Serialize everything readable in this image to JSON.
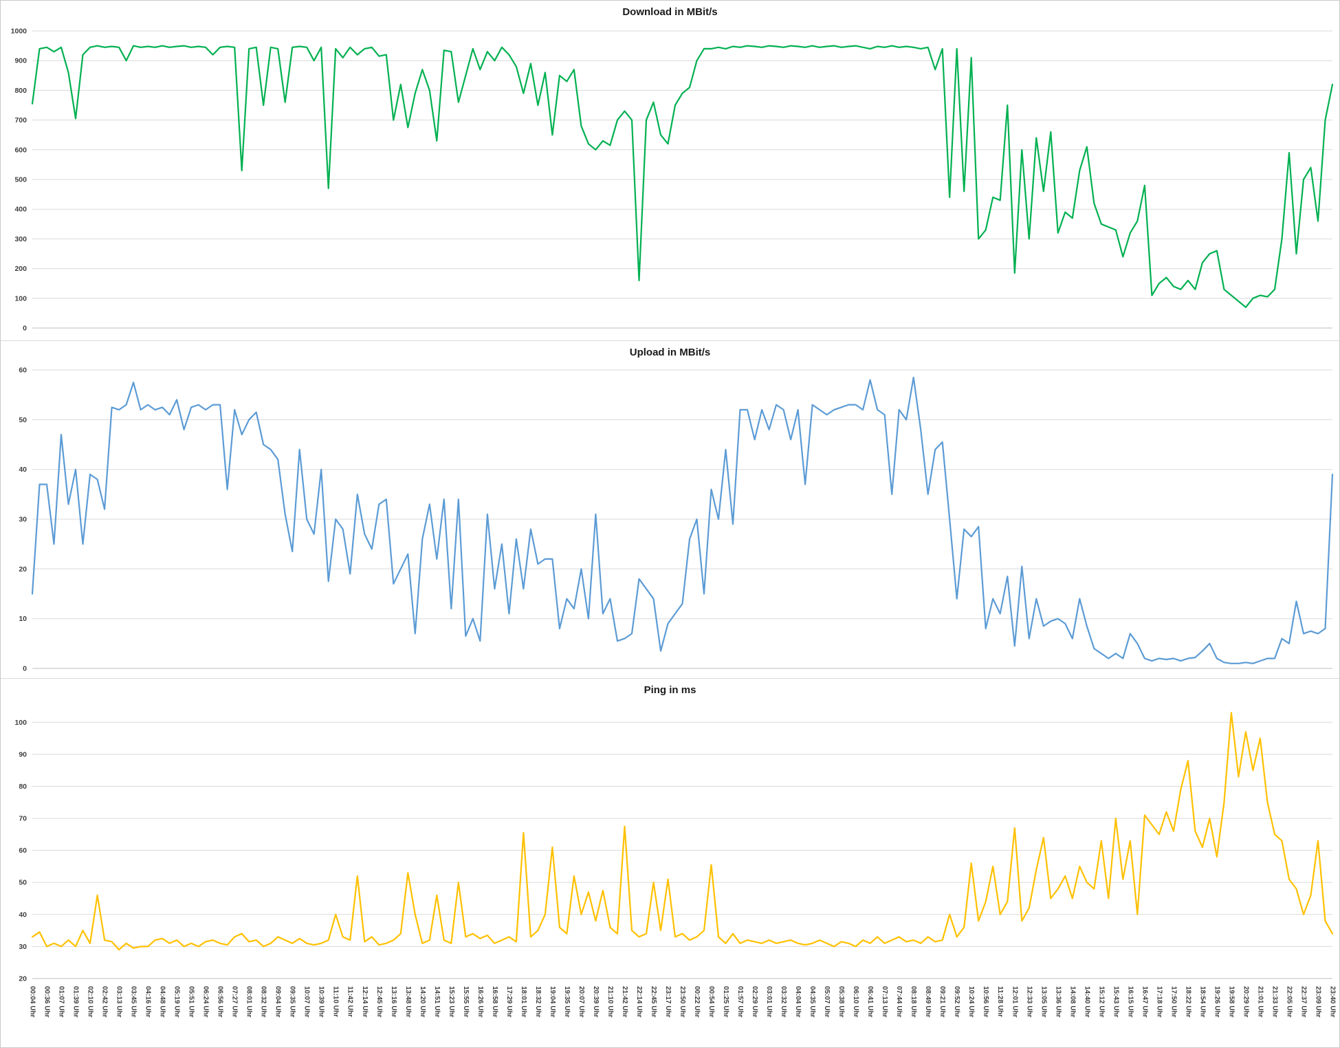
{
  "x_axis": {
    "label_every_n_points": 2,
    "labels": [
      "00:04 Uhr",
      "00:36 Uhr",
      "01:07 Uhr",
      "01:39 Uhr",
      "02:10 Uhr",
      "02:42 Uhr",
      "03:13 Uhr",
      "03:45 Uhr",
      "04:16 Uhr",
      "04:48 Uhr",
      "05:19 Uhr",
      "05:51 Uhr",
      "06:24 Uhr",
      "06:56 Uhr",
      "07:27 Uhr",
      "08:01 Uhr",
      "08:32 Uhr",
      "09:04 Uhr",
      "09:35 Uhr",
      "10:07 Uhr",
      "10:39 Uhr",
      "11:10 Uhr",
      "11:42 Uhr",
      "12:14 Uhr",
      "12:45 Uhr",
      "13:16 Uhr",
      "13:48 Uhr",
      "14:20 Uhr",
      "14:51 Uhr",
      "15:23 Uhr",
      "15:55 Uhr",
      "16:26 Uhr",
      "16:58 Uhr",
      "17:29 Uhr",
      "18:01 Uhr",
      "18:32 Uhr",
      "19:04 Uhr",
      "19:35 Uhr",
      "20:07 Uhr",
      "20:39 Uhr",
      "21:10 Uhr",
      "21:42 Uhr",
      "22:14 Uhr",
      "22:45 Uhr",
      "23:17 Uhr",
      "23:50 Uhr",
      "00:22 Uhr",
      "00:54 Uhr",
      "01:25 Uhr",
      "01:57 Uhr",
      "02:29 Uhr",
      "03:01 Uhr",
      "03:32 Uhr",
      "04:04 Uhr",
      "04:35 Uhr",
      "05:07 Uhr",
      "05:38 Uhr",
      "06:10 Uhr",
      "06:41 Uhr",
      "07:13 Uhr",
      "07:44 Uhr",
      "08:18 Uhr",
      "08:49 Uhr",
      "09:21 Uhr",
      "09:52 Uhr",
      "10:24 Uhr",
      "10:56 Uhr",
      "11:28 Uhr",
      "12:01 Uhr",
      "12:33 Uhr",
      "13:05 Uhr",
      "13:36 Uhr",
      "14:08 Uhr",
      "14:40 Uhr",
      "15:12 Uhr",
      "15:43 Uhr",
      "16:15 Uhr",
      "16:47 Uhr",
      "17:18 Uhr",
      "17:50 Uhr",
      "18:22 Uhr",
      "18:54 Uhr",
      "19:26 Uhr",
      "19:58 Uhr",
      "20:29 Uhr",
      "21:01 Uhr",
      "21:33 Uhr",
      "22:05 Uhr",
      "22:37 Uhr",
      "23:09 Uhr",
      "23:40 Uhr"
    ]
  },
  "chart_data": [
    {
      "type": "line",
      "title": "Download in MBit/s",
      "ylim": [
        0,
        1000
      ],
      "ytick_step": 100,
      "grid": true,
      "legend": "none",
      "show_x_labels": false,
      "series": [
        {
          "name": "Download",
          "color": "#00B050",
          "values": [
            755,
            940,
            945,
            930,
            945,
            860,
            705,
            920,
            945,
            950,
            945,
            948,
            945,
            900,
            950,
            945,
            948,
            945,
            950,
            945,
            948,
            950,
            945,
            948,
            945,
            920,
            945,
            948,
            945,
            530,
            940,
            945,
            750,
            945,
            940,
            760,
            945,
            948,
            945,
            900,
            945,
            470,
            940,
            910,
            945,
            920,
            940,
            945,
            915,
            920,
            700,
            820,
            675,
            790,
            870,
            800,
            630,
            935,
            930,
            760,
            850,
            940,
            870,
            930,
            900,
            945,
            920,
            880,
            790,
            890,
            750,
            860,
            650,
            850,
            830,
            870,
            680,
            620,
            600,
            630,
            615,
            700,
            730,
            700,
            160,
            700,
            760,
            650,
            620,
            750,
            790,
            810,
            900,
            940,
            940,
            945,
            940,
            948,
            945,
            950,
            948,
            945,
            950,
            948,
            945,
            950,
            948,
            945,
            950,
            945,
            948,
            950,
            945,
            948,
            950,
            945,
            940,
            948,
            945,
            950,
            945,
            948,
            945,
            940,
            945,
            870,
            940,
            440,
            940,
            460,
            910,
            300,
            330,
            440,
            430,
            750,
            185,
            600,
            300,
            640,
            460,
            660,
            320,
            390,
            370,
            530,
            610,
            420,
            350,
            340,
            330,
            240,
            320,
            360,
            480,
            110,
            150,
            170,
            140,
            130,
            160,
            130,
            220,
            250,
            260,
            130,
            110,
            90,
            70,
            100,
            110,
            105,
            130,
            300,
            590,
            250,
            500,
            540,
            360,
            700,
            820
          ]
        }
      ]
    },
    {
      "type": "line",
      "title": "Upload in MBit/s",
      "ylim": [
        0,
        60
      ],
      "ytick_step": 10,
      "grid": true,
      "legend": "none",
      "show_x_labels": false,
      "series": [
        {
          "name": "Upload",
          "color": "#5B9BD5",
          "values": [
            15,
            37,
            37,
            25,
            47,
            33,
            40,
            25,
            39,
            38,
            32,
            52.5,
            52,
            53,
            57.5,
            52,
            53,
            52,
            52.5,
            51,
            54,
            48,
            52.5,
            53,
            52,
            53,
            53,
            36,
            52,
            47,
            50,
            51.5,
            45,
            44,
            42,
            31,
            23.5,
            44,
            30,
            27,
            40,
            17.5,
            30,
            28,
            19,
            35,
            27,
            24,
            33,
            34,
            17,
            20,
            23,
            7,
            26,
            33,
            22,
            34,
            12,
            34,
            6.5,
            10,
            5.5,
            31,
            16,
            25,
            11,
            26,
            16,
            28,
            21,
            22,
            22,
            8,
            14,
            12,
            20,
            10,
            31,
            11,
            14,
            5.5,
            6,
            7,
            18,
            16,
            14,
            3.5,
            9,
            11,
            13,
            26,
            30,
            15,
            36,
            30,
            44,
            29,
            52,
            52,
            46,
            52,
            48,
            53,
            52,
            46,
            52,
            37,
            53,
            52,
            51,
            52,
            52.5,
            53,
            53,
            52,
            58,
            52,
            51,
            35,
            52,
            50,
            58.5,
            48,
            35,
            44,
            45.5,
            30,
            14,
            28,
            26.5,
            28.5,
            8,
            14,
            11,
            18.5,
            4.5,
            20.5,
            6,
            14,
            8.5,
            9.5,
            10,
            9,
            6,
            14,
            8.5,
            4,
            3,
            2,
            3,
            2,
            7,
            5,
            2,
            1.5,
            2,
            1.8,
            2,
            1.5,
            2,
            2.2,
            3.5,
            5,
            2,
            1.2,
            1,
            1,
            1.2,
            1,
            1.5,
            2,
            2,
            6,
            5,
            13.5,
            7,
            7.5,
            7,
            8,
            39
          ]
        }
      ]
    },
    {
      "type": "line",
      "title": "Ping in ms",
      "ylim": [
        20,
        105
      ],
      "ytick_max": 100,
      "ytick_step": 10,
      "grid": true,
      "legend": "none",
      "show_x_labels": true,
      "series": [
        {
          "name": "Ping",
          "color": "#FFC000",
          "values": [
            33,
            34.5,
            30,
            31,
            30,
            32,
            30,
            35,
            31,
            46,
            32,
            31.5,
            29,
            31,
            29.5,
            30,
            30,
            32,
            32.5,
            31,
            32,
            30,
            31,
            30,
            31.5,
            32,
            31,
            30.5,
            33,
            34,
            31.5,
            32,
            30,
            31,
            33,
            32,
            31,
            32.5,
            31,
            30.5,
            31,
            32,
            40,
            33,
            32,
            52,
            31.5,
            33,
            30.5,
            31,
            32,
            34,
            53,
            40,
            31,
            32,
            46,
            32,
            31,
            50,
            33,
            34,
            32.5,
            33.5,
            31,
            32,
            33,
            31.5,
            65.5,
            33,
            35,
            40,
            61,
            36,
            34,
            52,
            40,
            47,
            38,
            47.5,
            36,
            34,
            67.5,
            35,
            33,
            34,
            50,
            35,
            51,
            33,
            34,
            32,
            33,
            35,
            55.5,
            33,
            31,
            34,
            31,
            32,
            31.5,
            31,
            32,
            31,
            31.5,
            32,
            31,
            30.5,
            31,
            32,
            31,
            30,
            31.5,
            31,
            30,
            32,
            31,
            33,
            31,
            32,
            33,
            31.5,
            32,
            31,
            33,
            31.5,
            32,
            40,
            33,
            36,
            56,
            38,
            44,
            55,
            40,
            44,
            67,
            38,
            42,
            54,
            64,
            45,
            48,
            52,
            45,
            55,
            50,
            48,
            63,
            45,
            70,
            51,
            63,
            40,
            71,
            68,
            65,
            72,
            66,
            79,
            88,
            66,
            61,
            70,
            58,
            75,
            103,
            83,
            97,
            85,
            95,
            75,
            65,
            63,
            51,
            48,
            40,
            46,
            63,
            38,
            34
          ]
        }
      ]
    }
  ]
}
